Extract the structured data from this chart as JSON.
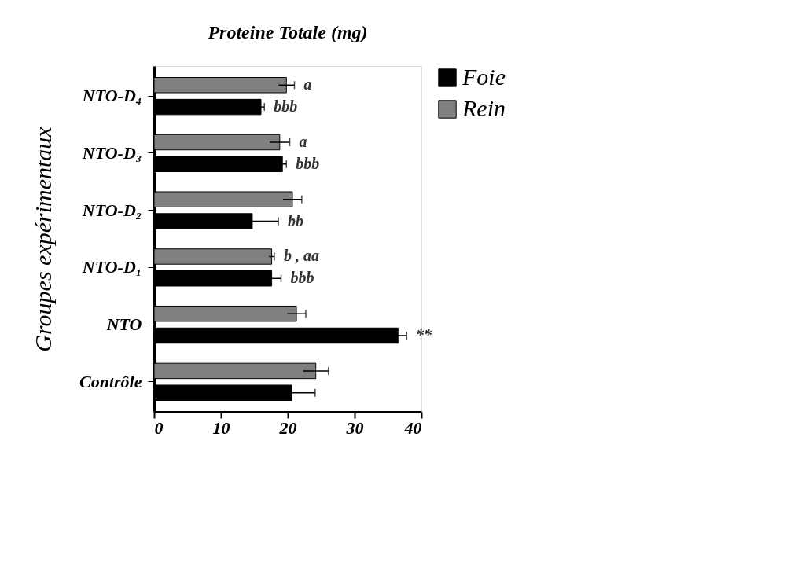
{
  "chart_data": {
    "type": "bar",
    "orientation": "horizontal",
    "title": "Proteine Totale (mg)",
    "ylabel": "Groupes expérimentaux",
    "categories": [
      "NTO-D₄",
      "NTO-D₃",
      "NTO-D₂",
      "NTO-D₁",
      "NTO",
      "Contrôle"
    ],
    "series": [
      {
        "name": "Rein",
        "color": "#808080",
        "values": [
          19.8,
          18.8,
          20.7,
          17.6,
          21.3,
          24.2
        ],
        "errors": [
          1.2,
          1.5,
          1.4,
          0.4,
          1.4,
          1.9
        ]
      },
      {
        "name": "Foie",
        "color": "#000000",
        "values": [
          16.0,
          19.2,
          14.7,
          17.6,
          36.5,
          20.6
        ],
        "errors": [
          0.5,
          0.6,
          3.9,
          1.4,
          1.3,
          3.5
        ]
      }
    ],
    "xlim": [
      0,
      40
    ],
    "xticks": [
      0,
      10,
      20,
      30,
      40
    ],
    "grid": false,
    "legend": "right",
    "annotations": [
      {
        "text": "a",
        "x": 19.8,
        "y": "NTO-D₄"
      },
      {
        "text": "bbb",
        "x": 16.0,
        "y": "NTO-D₄"
      },
      {
        "text": "a",
        "x": 18.8,
        "y": "NTO-D₃"
      },
      {
        "text": "bbb",
        "x": 19.2,
        "y": "NTO-D₃"
      },
      {
        "text": "bb",
        "x": 14.7,
        "y": "NTO-D₂"
      },
      {
        "text": "b , aa",
        "x": 17.6,
        "y": "NTO-D₁"
      },
      {
        "text": "bbb",
        "x": 17.6,
        "y": "NTO-D₁"
      },
      {
        "text": "**",
        "x": 36.5,
        "y": "NTO"
      }
    ]
  }
}
